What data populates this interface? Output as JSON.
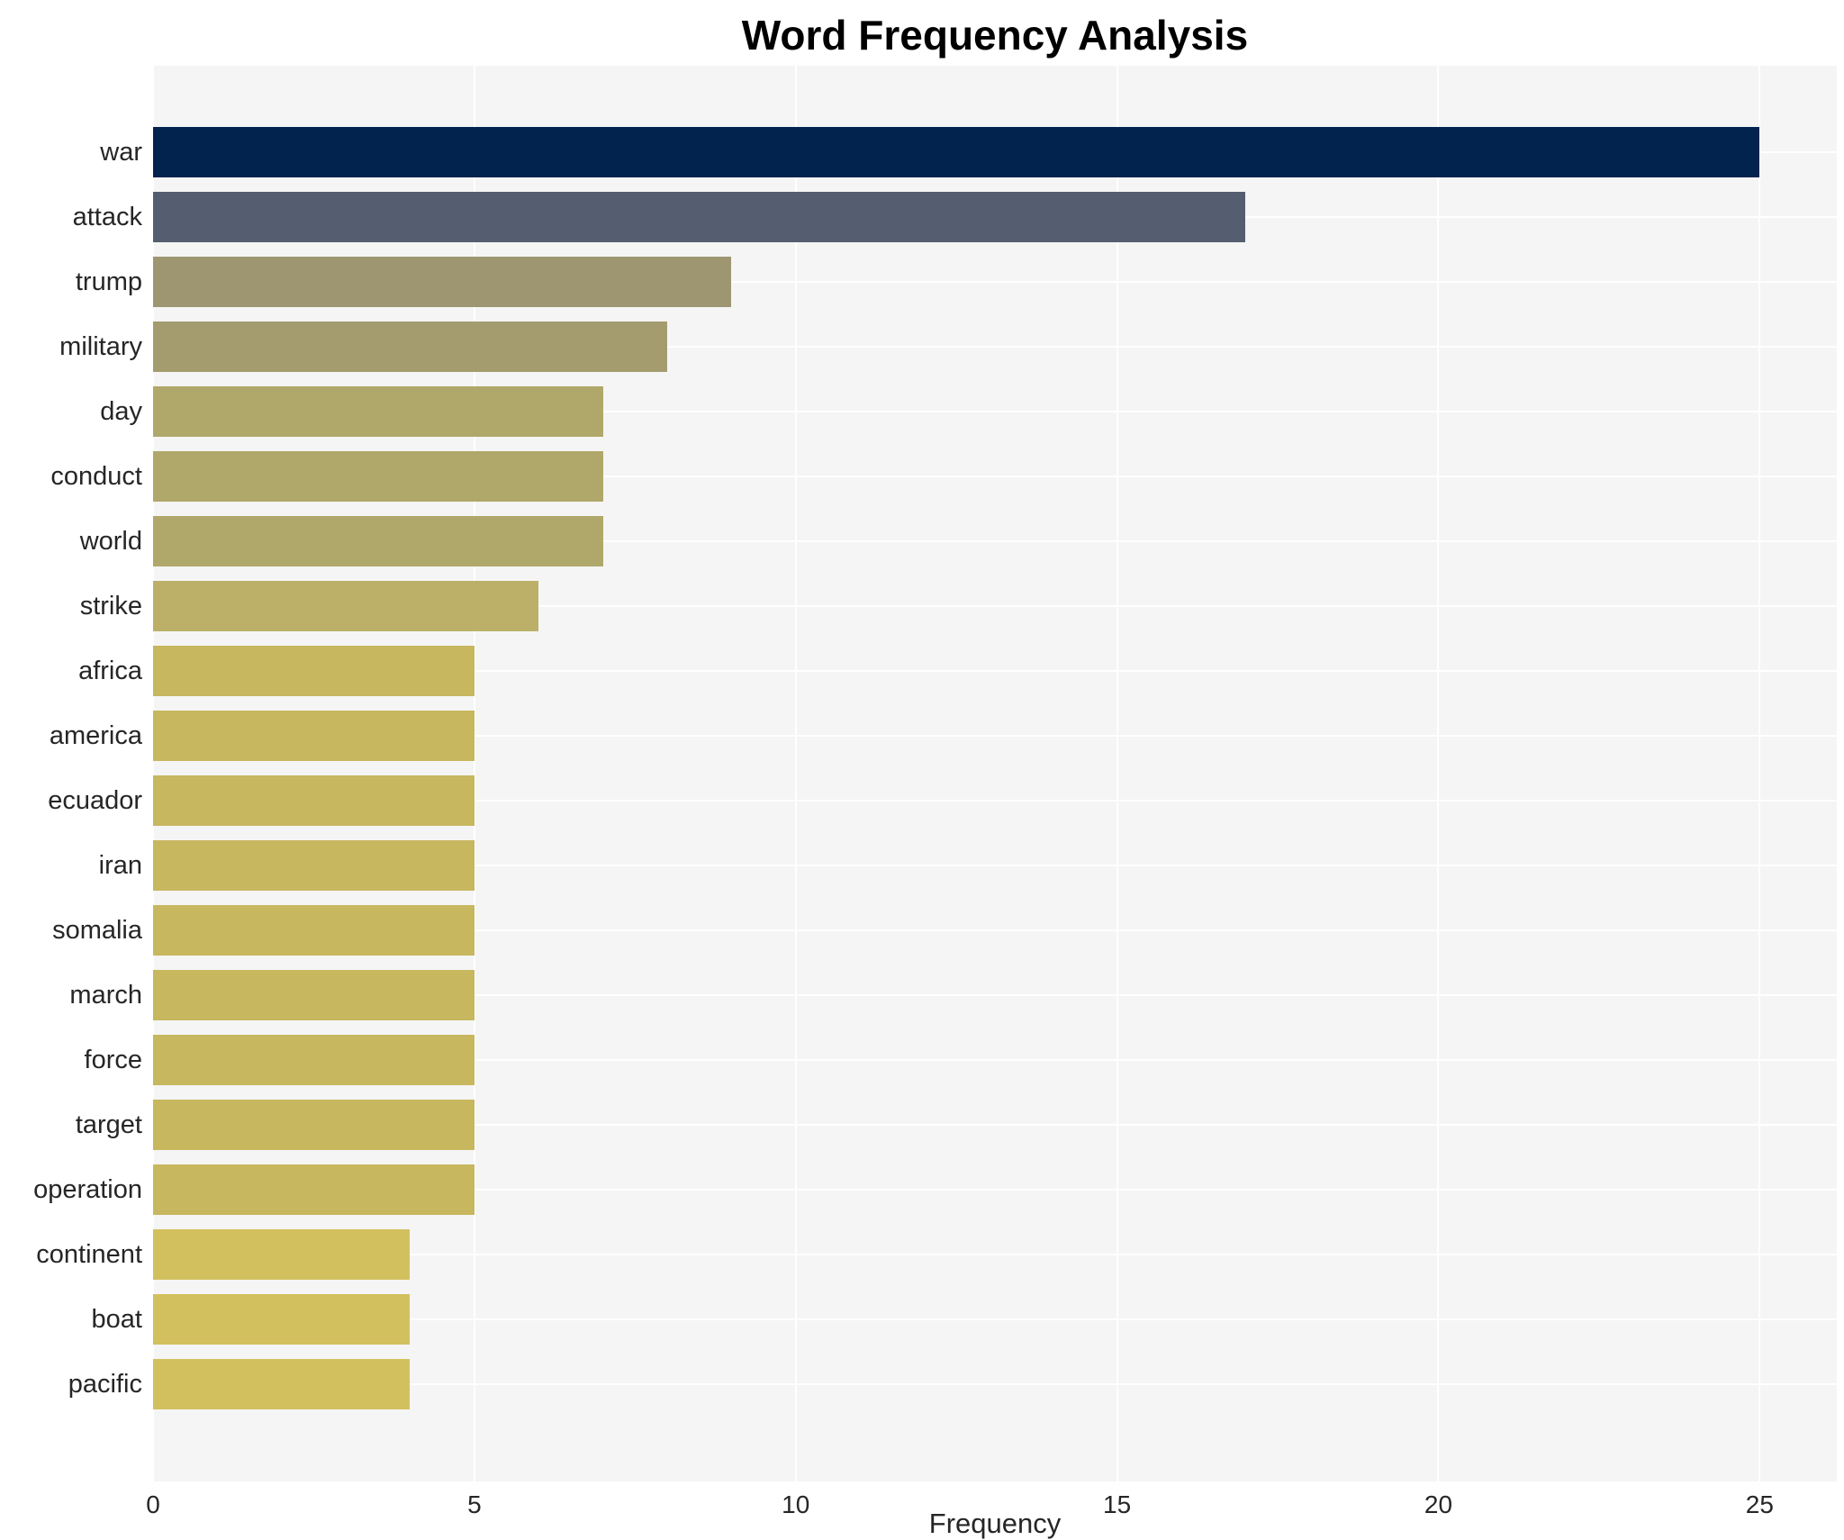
{
  "title": "Word Frequency Analysis",
  "colors": {
    "canvas_background": "#ffffff",
    "plot_background": "#f5f5f5",
    "grid": "#ffffff",
    "title_text": "#000000",
    "tick_text": "#262626",
    "label_text": "#262626"
  },
  "chart_data": {
    "type": "bar",
    "orientation": "horizontal",
    "title": "Word Frequency Analysis",
    "xlabel": "Frequency",
    "ylabel": "",
    "categories": [
      "war",
      "attack",
      "trump",
      "military",
      "day",
      "conduct",
      "world",
      "strike",
      "africa",
      "america",
      "ecuador",
      "iran",
      "somalia",
      "march",
      "force",
      "target",
      "operation",
      "continent",
      "boat",
      "pacific"
    ],
    "values": [
      25,
      17,
      9,
      8,
      7,
      7,
      7,
      6,
      5,
      5,
      5,
      5,
      5,
      5,
      5,
      5,
      5,
      4,
      4,
      4
    ],
    "bar_colors": [
      "#01234e",
      "#555d70",
      "#9e9671",
      "#a49c6e",
      "#b0a76a",
      "#b0a76a",
      "#b0a76a",
      "#bcb069",
      "#c7b75f",
      "#c7b75f",
      "#c7b75f",
      "#c7b75f",
      "#c7b75f",
      "#c7b75f",
      "#c7b75f",
      "#c7b75f",
      "#c7b75f",
      "#d2c05e",
      "#d2c05e",
      "#d2c05e"
    ],
    "colormap": "cividis",
    "xlim": [
      0,
      26.2
    ],
    "xticks": [
      0,
      5,
      10,
      15,
      20,
      25
    ],
    "grid": true,
    "legend": false
  }
}
